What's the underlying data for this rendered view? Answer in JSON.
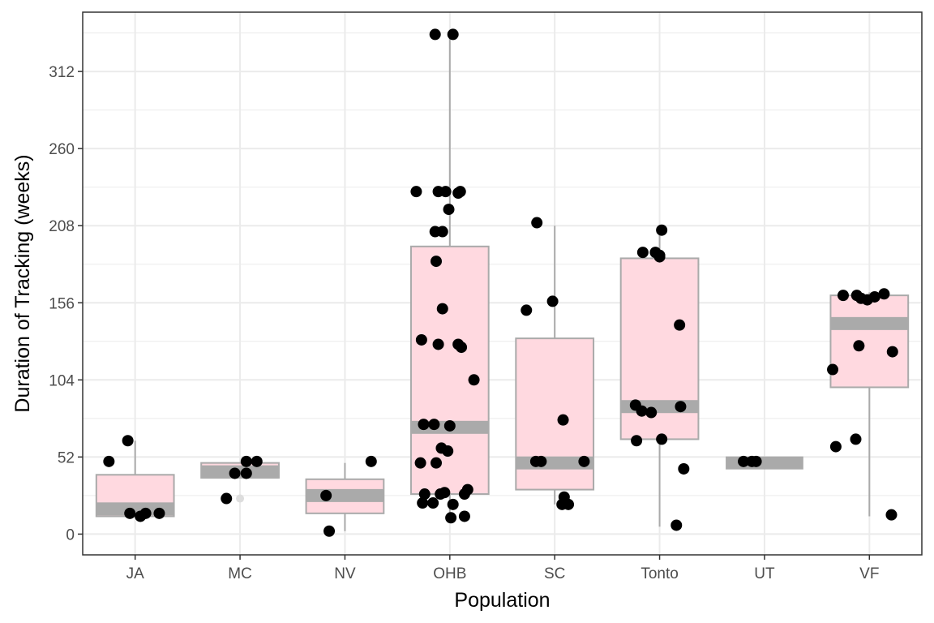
{
  "chart_data": {
    "type": "boxplot",
    "title": "",
    "xlabel": "Population",
    "ylabel": "Duration of Tracking (weeks)",
    "ylim": [
      -14,
      352
    ],
    "yticks": [
      0,
      52,
      104,
      156,
      208,
      260,
      312
    ],
    "categories": [
      "JA",
      "MC",
      "NV",
      "OHB",
      "SC",
      "Tonto",
      "UT",
      "VF"
    ],
    "grid": true,
    "legend": "none",
    "colors": {
      "box_fill": "#ffd9e0",
      "box_stroke": "#aaaaaa",
      "median": "#aaaaaa",
      "points": "#000000",
      "grid": "#ebebeb",
      "panel_border": "#333333"
    },
    "boxes": [
      {
        "category": "JA",
        "whisker_low": 12,
        "q1": 12,
        "median": 17,
        "q3": 40,
        "whisker_high": 63
      },
      {
        "category": "MC",
        "whisker_low": 38,
        "q1": 38,
        "median": 42,
        "q3": 48,
        "whisker_high": 48
      },
      {
        "category": "NV",
        "whisker_low": 2,
        "q1": 14,
        "median": 26,
        "q3": 37,
        "whisker_high": 48
      },
      {
        "category": "OHB",
        "whisker_low": 10,
        "q1": 27,
        "median": 72,
        "q3": 194,
        "whisker_high": 336
      },
      {
        "category": "SC",
        "whisker_low": 20,
        "q1": 30,
        "median": 48,
        "q3": 132,
        "whisker_high": 208
      },
      {
        "category": "Tonto",
        "whisker_low": 5,
        "q1": 64,
        "median": 86,
        "q3": 186,
        "whisker_high": 204
      },
      {
        "category": "UT",
        "whisker_low": 48,
        "q1": 48,
        "median": 48,
        "q3": 48,
        "whisker_high": 48
      },
      {
        "category": "VF",
        "whisker_low": 12,
        "q1": 99,
        "median": 142,
        "q3": 161,
        "whisker_high": 163
      }
    ],
    "outliers": [
      {
        "category": "MC",
        "offset": 0.0,
        "y": 24
      }
    ],
    "points": [
      {
        "category": "JA",
        "offset": -0.25,
        "y": 49
      },
      {
        "category": "JA",
        "offset": -0.07,
        "y": 63
      },
      {
        "category": "JA",
        "offset": -0.05,
        "y": 14
      },
      {
        "category": "JA",
        "offset": 0.05,
        "y": 12
      },
      {
        "category": "JA",
        "offset": 0.1,
        "y": 14
      },
      {
        "category": "JA",
        "offset": 0.23,
        "y": 14
      },
      {
        "category": "MC",
        "offset": -0.13,
        "y": 24
      },
      {
        "category": "MC",
        "offset": -0.05,
        "y": 41
      },
      {
        "category": "MC",
        "offset": 0.06,
        "y": 41
      },
      {
        "category": "MC",
        "offset": 0.06,
        "y": 49
      },
      {
        "category": "MC",
        "offset": 0.16,
        "y": 49
      },
      {
        "category": "NV",
        "offset": -0.18,
        "y": 26
      },
      {
        "category": "NV",
        "offset": -0.15,
        "y": 2
      },
      {
        "category": "NV",
        "offset": 0.25,
        "y": 49
      },
      {
        "category": "OHB",
        "offset": -0.32,
        "y": 231
      },
      {
        "category": "OHB",
        "offset": -0.14,
        "y": 337
      },
      {
        "category": "OHB",
        "offset": 0.03,
        "y": 337
      },
      {
        "category": "OHB",
        "offset": -0.11,
        "y": 231
      },
      {
        "category": "OHB",
        "offset": -0.04,
        "y": 231
      },
      {
        "category": "OHB",
        "offset": 0.08,
        "y": 230
      },
      {
        "category": "OHB",
        "offset": 0.1,
        "y": 231
      },
      {
        "category": "OHB",
        "offset": -0.01,
        "y": 219
      },
      {
        "category": "OHB",
        "offset": -0.14,
        "y": 204
      },
      {
        "category": "OHB",
        "offset": -0.07,
        "y": 204
      },
      {
        "category": "OHB",
        "offset": -0.13,
        "y": 184
      },
      {
        "category": "OHB",
        "offset": -0.07,
        "y": 152
      },
      {
        "category": "OHB",
        "offset": -0.27,
        "y": 131
      },
      {
        "category": "OHB",
        "offset": -0.11,
        "y": 128
      },
      {
        "category": "OHB",
        "offset": 0.08,
        "y": 128
      },
      {
        "category": "OHB",
        "offset": 0.11,
        "y": 126
      },
      {
        "category": "OHB",
        "offset": 0.23,
        "y": 104
      },
      {
        "category": "OHB",
        "offset": -0.25,
        "y": 74
      },
      {
        "category": "OHB",
        "offset": -0.15,
        "y": 74
      },
      {
        "category": "OHB",
        "offset": 0.0,
        "y": 73
      },
      {
        "category": "OHB",
        "offset": -0.08,
        "y": 58
      },
      {
        "category": "OHB",
        "offset": -0.02,
        "y": 56
      },
      {
        "category": "OHB",
        "offset": -0.28,
        "y": 48
      },
      {
        "category": "OHB",
        "offset": -0.13,
        "y": 48
      },
      {
        "category": "OHB",
        "offset": -0.24,
        "y": 27
      },
      {
        "category": "OHB",
        "offset": -0.09,
        "y": 27
      },
      {
        "category": "OHB",
        "offset": -0.05,
        "y": 28
      },
      {
        "category": "OHB",
        "offset": 0.17,
        "y": 30
      },
      {
        "category": "OHB",
        "offset": 0.14,
        "y": 27
      },
      {
        "category": "OHB",
        "offset": -0.26,
        "y": 21
      },
      {
        "category": "OHB",
        "offset": -0.16,
        "y": 21
      },
      {
        "category": "OHB",
        "offset": 0.03,
        "y": 20
      },
      {
        "category": "OHB",
        "offset": 0.01,
        "y": 11
      },
      {
        "category": "OHB",
        "offset": 0.14,
        "y": 12
      },
      {
        "category": "SC",
        "offset": -0.17,
        "y": 210
      },
      {
        "category": "SC",
        "offset": -0.27,
        "y": 151
      },
      {
        "category": "SC",
        "offset": -0.02,
        "y": 157
      },
      {
        "category": "SC",
        "offset": 0.08,
        "y": 77
      },
      {
        "category": "SC",
        "offset": -0.18,
        "y": 49
      },
      {
        "category": "SC",
        "offset": -0.13,
        "y": 49
      },
      {
        "category": "SC",
        "offset": 0.28,
        "y": 49
      },
      {
        "category": "SC",
        "offset": 0.09,
        "y": 25
      },
      {
        "category": "SC",
        "offset": 0.07,
        "y": 20
      },
      {
        "category": "SC",
        "offset": 0.13,
        "y": 20
      },
      {
        "category": "Tonto",
        "offset": 0.02,
        "y": 205
      },
      {
        "category": "Tonto",
        "offset": -0.16,
        "y": 190
      },
      {
        "category": "Tonto",
        "offset": -0.04,
        "y": 190
      },
      {
        "category": "Tonto",
        "offset": 0.0,
        "y": 188
      },
      {
        "category": "Tonto",
        "offset": 0.0,
        "y": 187
      },
      {
        "category": "Tonto",
        "offset": 0.19,
        "y": 141
      },
      {
        "category": "Tonto",
        "offset": -0.23,
        "y": 87
      },
      {
        "category": "Tonto",
        "offset": -0.17,
        "y": 83
      },
      {
        "category": "Tonto",
        "offset": -0.08,
        "y": 82
      },
      {
        "category": "Tonto",
        "offset": 0.2,
        "y": 86
      },
      {
        "category": "Tonto",
        "offset": -0.22,
        "y": 63
      },
      {
        "category": "Tonto",
        "offset": 0.02,
        "y": 64
      },
      {
        "category": "Tonto",
        "offset": 0.23,
        "y": 44
      },
      {
        "category": "Tonto",
        "offset": 0.16,
        "y": 6
      },
      {
        "category": "UT",
        "offset": -0.2,
        "y": 49
      },
      {
        "category": "UT",
        "offset": -0.12,
        "y": 49
      },
      {
        "category": "UT",
        "offset": -0.08,
        "y": 49
      },
      {
        "category": "VF",
        "offset": -0.25,
        "y": 161
      },
      {
        "category": "VF",
        "offset": -0.12,
        "y": 161
      },
      {
        "category": "VF",
        "offset": -0.08,
        "y": 159
      },
      {
        "category": "VF",
        "offset": -0.02,
        "y": 158
      },
      {
        "category": "VF",
        "offset": 0.05,
        "y": 160
      },
      {
        "category": "VF",
        "offset": 0.14,
        "y": 162
      },
      {
        "category": "VF",
        "offset": -0.1,
        "y": 127
      },
      {
        "category": "VF",
        "offset": 0.22,
        "y": 123
      },
      {
        "category": "VF",
        "offset": -0.35,
        "y": 111
      },
      {
        "category": "VF",
        "offset": -0.32,
        "y": 59
      },
      {
        "category": "VF",
        "offset": -0.13,
        "y": 64
      },
      {
        "category": "VF",
        "offset": 0.21,
        "y": 13
      }
    ]
  }
}
